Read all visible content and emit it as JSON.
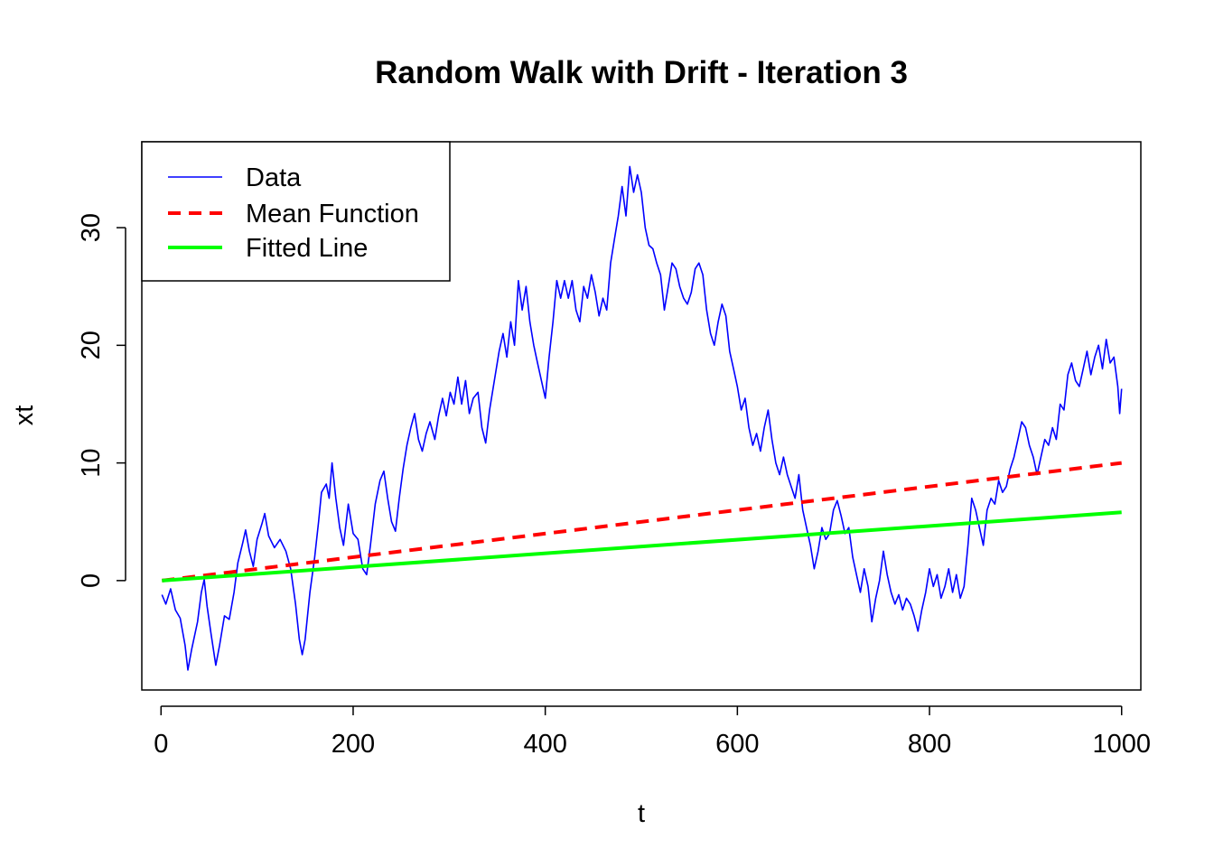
{
  "chart_data": {
    "type": "line",
    "title": "Random Walk with Drift - Iteration 3",
    "xlabel": "t",
    "ylabel": "xt",
    "xlim": [
      -20,
      1020
    ],
    "ylim": [
      -9.3,
      37.3
    ],
    "x_ticks": [
      0,
      200,
      400,
      600,
      800,
      1000
    ],
    "x_tick_labels": [
      "0",
      "200",
      "400",
      "600",
      "800",
      "1000"
    ],
    "y_ticks": [
      0,
      10,
      20,
      30
    ],
    "y_tick_labels": [
      "0",
      "10",
      "20",
      "30"
    ],
    "legend_position": "top-left",
    "grid": false,
    "colors": {
      "data": "#0000ff",
      "mean": "#ff0000",
      "fitted": "#00ff00",
      "axis": "#000000"
    },
    "series": [
      {
        "name": "Data",
        "style": "solid",
        "color": "#0000ff",
        "points": [
          [
            1,
            -1.2
          ],
          [
            5,
            -2.0
          ],
          [
            10,
            -0.7
          ],
          [
            15,
            -2.5
          ],
          [
            20,
            -3.2
          ],
          [
            25,
            -5.5
          ],
          [
            28,
            -7.6
          ],
          [
            32,
            -5.8
          ],
          [
            38,
            -3.5
          ],
          [
            42,
            -1.0
          ],
          [
            45,
            0.1
          ],
          [
            48,
            -2.2
          ],
          [
            52,
            -4.5
          ],
          [
            57,
            -7.2
          ],
          [
            61,
            -5.5
          ],
          [
            66,
            -3.0
          ],
          [
            71,
            -3.3
          ],
          [
            76,
            -1.0
          ],
          [
            80,
            1.5
          ],
          [
            85,
            3.2
          ],
          [
            88,
            4.3
          ],
          [
            92,
            2.5
          ],
          [
            96,
            1.2
          ],
          [
            100,
            3.5
          ],
          [
            105,
            4.8
          ],
          [
            108,
            5.7
          ],
          [
            112,
            3.8
          ],
          [
            118,
            2.8
          ],
          [
            124,
            3.5
          ],
          [
            130,
            2.5
          ],
          [
            135,
            1.0
          ],
          [
            140,
            -2.0
          ],
          [
            144,
            -5.0
          ],
          [
            147,
            -6.3
          ],
          [
            150,
            -5.0
          ],
          [
            155,
            -1.0
          ],
          [
            160,
            2.0
          ],
          [
            164,
            5.0
          ],
          [
            167,
            7.5
          ],
          [
            172,
            8.2
          ],
          [
            175,
            7.0
          ],
          [
            178,
            10.0
          ],
          [
            182,
            7.0
          ],
          [
            186,
            4.5
          ],
          [
            190,
            3.0
          ],
          [
            195,
            6.5
          ],
          [
            200,
            4.0
          ],
          [
            205,
            3.5
          ],
          [
            210,
            1.0
          ],
          [
            214,
            0.5
          ],
          [
            218,
            3.0
          ],
          [
            223,
            6.5
          ],
          [
            228,
            8.5
          ],
          [
            232,
            9.3
          ],
          [
            236,
            7.0
          ],
          [
            240,
            5.0
          ],
          [
            244,
            4.2
          ],
          [
            248,
            7.0
          ],
          [
            252,
            9.5
          ],
          [
            256,
            11.5
          ],
          [
            260,
            13.0
          ],
          [
            264,
            14.2
          ],
          [
            268,
            12.0
          ],
          [
            272,
            11.0
          ],
          [
            276,
            12.5
          ],
          [
            280,
            13.5
          ],
          [
            285,
            12.0
          ],
          [
            289,
            14.0
          ],
          [
            293,
            15.5
          ],
          [
            297,
            14.0
          ],
          [
            301,
            16.0
          ],
          [
            305,
            15.0
          ],
          [
            309,
            17.3
          ],
          [
            313,
            15.0
          ],
          [
            317,
            17.0
          ],
          [
            321,
            14.2
          ],
          [
            325,
            15.5
          ],
          [
            330,
            16.0
          ],
          [
            334,
            13.0
          ],
          [
            338,
            11.7
          ],
          [
            342,
            14.5
          ],
          [
            347,
            17.0
          ],
          [
            352,
            19.5
          ],
          [
            356,
            21.0
          ],
          [
            360,
            19.0
          ],
          [
            364,
            22.0
          ],
          [
            368,
            20.0
          ],
          [
            372,
            25.5
          ],
          [
            376,
            23.0
          ],
          [
            380,
            25.0
          ],
          [
            384,
            22.0
          ],
          [
            388,
            20.0
          ],
          [
            392,
            18.5
          ],
          [
            396,
            17.0
          ],
          [
            400,
            15.5
          ],
          [
            404,
            19.0
          ],
          [
            408,
            22.0
          ],
          [
            412,
            25.5
          ],
          [
            416,
            24.0
          ],
          [
            420,
            25.5
          ],
          [
            424,
            24.0
          ],
          [
            428,
            25.5
          ],
          [
            432,
            23.0
          ],
          [
            436,
            22.0
          ],
          [
            440,
            25.0
          ],
          [
            444,
            24.0
          ],
          [
            448,
            26.0
          ],
          [
            452,
            24.5
          ],
          [
            456,
            22.5
          ],
          [
            460,
            24.0
          ],
          [
            464,
            23.0
          ],
          [
            468,
            27.0
          ],
          [
            472,
            29.0
          ],
          [
            476,
            31.0
          ],
          [
            480,
            33.5
          ],
          [
            484,
            31.0
          ],
          [
            488,
            35.2
          ],
          [
            492,
            33.0
          ],
          [
            496,
            34.5
          ],
          [
            500,
            33.0
          ],
          [
            504,
            30.0
          ],
          [
            508,
            28.5
          ],
          [
            512,
            28.2
          ],
          [
            516,
            27.0
          ],
          [
            520,
            26.0
          ],
          [
            524,
            23.0
          ],
          [
            528,
            25.0
          ],
          [
            532,
            27.0
          ],
          [
            536,
            26.5
          ],
          [
            540,
            25.0
          ],
          [
            544,
            24.0
          ],
          [
            548,
            23.5
          ],
          [
            552,
            24.5
          ],
          [
            556,
            26.5
          ],
          [
            560,
            27.0
          ],
          [
            564,
            26.0
          ],
          [
            568,
            23.0
          ],
          [
            572,
            21.0
          ],
          [
            576,
            20.0
          ],
          [
            580,
            22.0
          ],
          [
            584,
            23.5
          ],
          [
            588,
            22.5
          ],
          [
            592,
            19.5
          ],
          [
            596,
            18.0
          ],
          [
            600,
            16.5
          ],
          [
            604,
            14.5
          ],
          [
            608,
            15.5
          ],
          [
            612,
            13.0
          ],
          [
            616,
            11.5
          ],
          [
            620,
            12.5
          ],
          [
            624,
            11.0
          ],
          [
            628,
            13.0
          ],
          [
            632,
            14.5
          ],
          [
            636,
            12.0
          ],
          [
            640,
            10.0
          ],
          [
            644,
            9.0
          ],
          [
            648,
            10.5
          ],
          [
            652,
            9.0
          ],
          [
            656,
            8.0
          ],
          [
            660,
            7.0
          ],
          [
            664,
            9.0
          ],
          [
            668,
            6.0
          ],
          [
            672,
            4.5
          ],
          [
            676,
            3.0
          ],
          [
            680,
            1.0
          ],
          [
            684,
            2.5
          ],
          [
            688,
            4.5
          ],
          [
            692,
            3.5
          ],
          [
            696,
            4.0
          ],
          [
            700,
            6.0
          ],
          [
            704,
            6.8
          ],
          [
            708,
            5.5
          ],
          [
            712,
            4.0
          ],
          [
            716,
            4.5
          ],
          [
            720,
            2.0
          ],
          [
            724,
            0.5
          ],
          [
            728,
            -1.0
          ],
          [
            732,
            1.0
          ],
          [
            736,
            -0.5
          ],
          [
            740,
            -3.5
          ],
          [
            744,
            -1.5
          ],
          [
            748,
            0.0
          ],
          [
            752,
            2.5
          ],
          [
            756,
            0.5
          ],
          [
            760,
            -1.0
          ],
          [
            764,
            -2.0
          ],
          [
            768,
            -1.2
          ],
          [
            772,
            -2.5
          ],
          [
            776,
            -1.5
          ],
          [
            780,
            -2.0
          ],
          [
            784,
            -3.0
          ],
          [
            788,
            -4.3
          ],
          [
            792,
            -2.5
          ],
          [
            796,
            -1.0
          ],
          [
            800,
            1.0
          ],
          [
            804,
            -0.5
          ],
          [
            808,
            0.5
          ],
          [
            812,
            -1.5
          ],
          [
            816,
            -0.5
          ],
          [
            820,
            1.0
          ],
          [
            824,
            -1.0
          ],
          [
            828,
            0.5
          ],
          [
            832,
            -1.5
          ],
          [
            836,
            -0.5
          ],
          [
            840,
            3.0
          ],
          [
            844,
            7.0
          ],
          [
            848,
            6.0
          ],
          [
            852,
            4.5
          ],
          [
            856,
            3.0
          ],
          [
            860,
            6.0
          ],
          [
            864,
            7.0
          ],
          [
            868,
            6.5
          ],
          [
            872,
            8.5
          ],
          [
            876,
            7.5
          ],
          [
            880,
            8.0
          ],
          [
            884,
            9.5
          ],
          [
            888,
            10.5
          ],
          [
            892,
            12.0
          ],
          [
            896,
            13.5
          ],
          [
            900,
            13.0
          ],
          [
            904,
            11.5
          ],
          [
            908,
            10.5
          ],
          [
            912,
            9.0
          ],
          [
            916,
            10.5
          ],
          [
            920,
            12.0
          ],
          [
            924,
            11.5
          ],
          [
            928,
            13.0
          ],
          [
            932,
            12.0
          ],
          [
            936,
            15.0
          ],
          [
            940,
            14.5
          ],
          [
            944,
            17.5
          ],
          [
            948,
            18.5
          ],
          [
            952,
            17.0
          ],
          [
            956,
            16.5
          ],
          [
            960,
            18.0
          ],
          [
            964,
            19.5
          ],
          [
            968,
            17.5
          ],
          [
            972,
            19.0
          ],
          [
            976,
            20.0
          ],
          [
            980,
            18.0
          ],
          [
            984,
            20.5
          ],
          [
            988,
            18.5
          ],
          [
            992,
            19.0
          ],
          [
            996,
            16.5
          ],
          [
            998,
            14.2
          ],
          [
            1000,
            16.3
          ]
        ]
      },
      {
        "name": "Mean Function",
        "style": "dashed",
        "color": "#ff0000",
        "points": [
          [
            1,
            0.0
          ],
          [
            1000,
            10.0
          ]
        ]
      },
      {
        "name": "Fitted Line",
        "style": "solid",
        "color": "#00ff00",
        "points": [
          [
            1,
            0.0
          ],
          [
            1000,
            5.8
          ]
        ]
      }
    ]
  }
}
